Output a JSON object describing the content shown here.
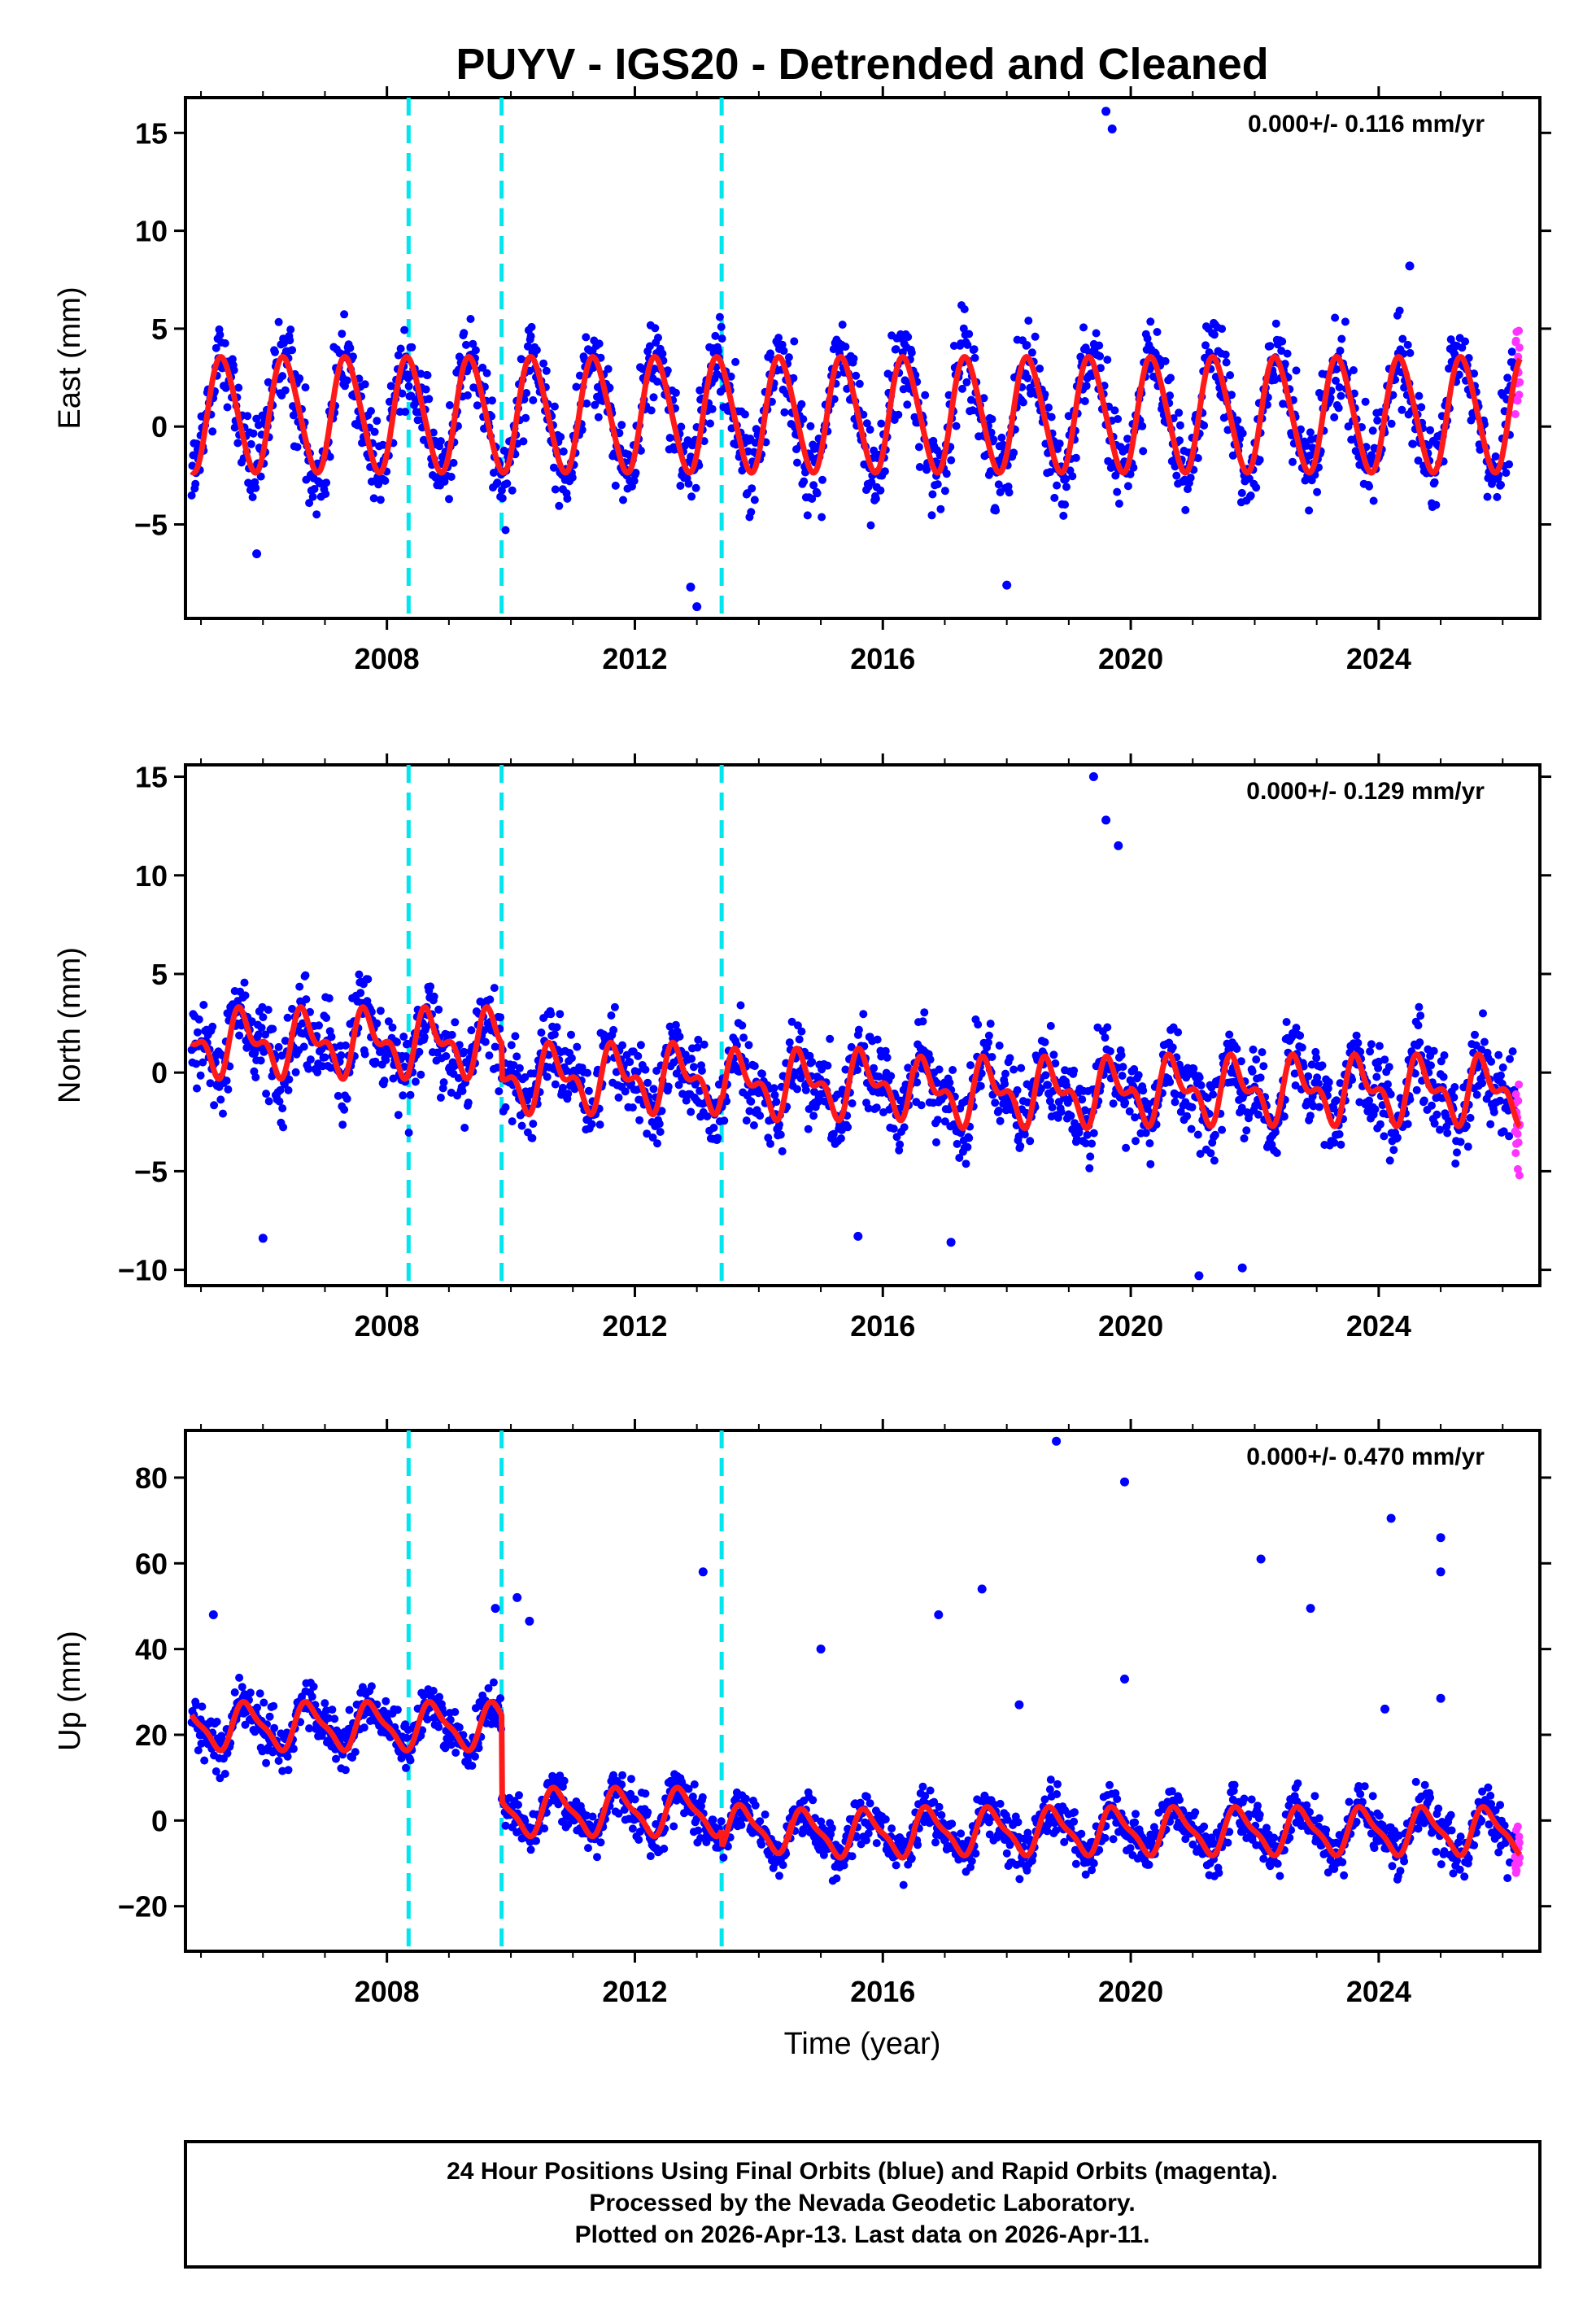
{
  "chart_data": {
    "type": "scatter",
    "title": "PUYV - IGS20 - Detrended and Cleaned",
    "xlabel": "Time (year)",
    "xlim": [
      2004.75,
      2026.6
    ],
    "xticks": [
      2008,
      2012,
      2016,
      2020,
      2024
    ],
    "xtick_labels": [
      "2008",
      "2012",
      "2016",
      "2020",
      "2024"
    ],
    "event_lines": [
      2008.35,
      2009.85,
      2013.4
    ],
    "colors": {
      "final": "#0000ff",
      "rapid": "#ff33ff",
      "model": "#ff1a1a",
      "event": "#00e5ee",
      "frame": "#000000"
    },
    "panels": [
      {
        "ylabel": "East (mm)",
        "ylim": [
          -9.8,
          16.8
        ],
        "yticks": [
          -5,
          0,
          5,
          10,
          15
        ],
        "ytick_labels": [
          "−5",
          "0",
          "5",
          "10",
          "15"
        ],
        "rate": "0.000+/- 0.116 mm/yr",
        "model": {
          "amp": 2.9,
          "amp2": 0.3,
          "phase": 0.1,
          "offset": 0.6,
          "noise": 1.6,
          "steps": []
        },
        "outliers": [
          [
            2019.6,
            16.1
          ],
          [
            2019.7,
            15.2
          ],
          [
            2013.0,
            -9.2
          ],
          [
            2012.9,
            -8.2
          ],
          [
            2018.0,
            -8.1
          ],
          [
            2005.9,
            -6.5
          ],
          [
            2024.5,
            8.2
          ]
        ]
      },
      {
        "ylabel": "North (mm)",
        "ylim": [
          -10.8,
          15.6
        ],
        "yticks": [
          -10,
          -5,
          0,
          5,
          10,
          15
        ],
        "ytick_labels": [
          "−10",
          "−5",
          "0",
          "5",
          "10",
          "15"
        ],
        "rate": "0.000+/- 0.129 mm/yr",
        "model": {
          "amp": 1.3,
          "amp2": 0.8,
          "phase": 0.45,
          "offset": 0.0,
          "noise": 1.5,
          "steps": [
            [
              2004.75,
              1.5
            ],
            [
              2009.85,
              -0.3
            ],
            [
              2013.4,
              -0.6
            ],
            [
              2016.5,
              -1.0
            ],
            [
              2020.0,
              -0.9
            ]
          ]
        },
        "outliers": [
          [
            2019.4,
            15.0
          ],
          [
            2019.6,
            12.8
          ],
          [
            2019.8,
            11.5
          ],
          [
            2006.0,
            -8.4
          ],
          [
            2021.1,
            -10.3
          ],
          [
            2021.8,
            -9.9
          ],
          [
            2015.6,
            -8.3
          ],
          [
            2017.1,
            -8.6
          ]
        ]
      },
      {
        "ylabel": "Up (mm)",
        "ylim": [
          -30.5,
          91.0
        ],
        "yticks": [
          -20,
          0,
          20,
          40,
          60,
          80
        ],
        "ytick_labels": [
          "−20",
          "0",
          "20",
          "40",
          "60",
          "80"
        ],
        "rate": "0.000+/- 0.470 mm/yr",
        "model": {
          "amp": 5.0,
          "amp2": 1.5,
          "phase": 0.5,
          "offset": 0.0,
          "noise": 4.0,
          "steps": [
            [
              2004.75,
              22.0
            ],
            [
              2009.85,
              2.0
            ],
            [
              2013.4,
              -2.0
            ],
            [
              2014.5,
              -3.0
            ],
            [
              2016.5,
              -2.5
            ]
          ]
        },
        "outliers": [
          [
            2018.8,
            88.5
          ],
          [
            2019.9,
            79.0
          ],
          [
            2022.1,
            61.0
          ],
          [
            2022.9,
            49.5
          ],
          [
            2024.2,
            70.5
          ],
          [
            2025.0,
            66.0
          ],
          [
            2025.0,
            58.0
          ],
          [
            2017.6,
            54.0
          ],
          [
            2016.9,
            48.0
          ],
          [
            2013.1,
            58.0
          ],
          [
            2010.1,
            52.0
          ],
          [
            2009.75,
            49.5
          ],
          [
            2010.3,
            46.5
          ],
          [
            2005.2,
            48.0
          ],
          [
            2015.0,
            40.0
          ],
          [
            2019.9,
            33.0
          ],
          [
            2024.1,
            26.0
          ],
          [
            2025.0,
            28.5
          ],
          [
            2018.2,
            27.0
          ]
        ]
      }
    ],
    "footer": [
      "24 Hour Positions Using Final Orbits (blue) and Rapid Orbits (magenta).",
      "Processed by the Nevada Geodetic Laboratory.",
      "Plotted on 2026-Apr-13. Last data on 2026-Apr-11."
    ]
  }
}
